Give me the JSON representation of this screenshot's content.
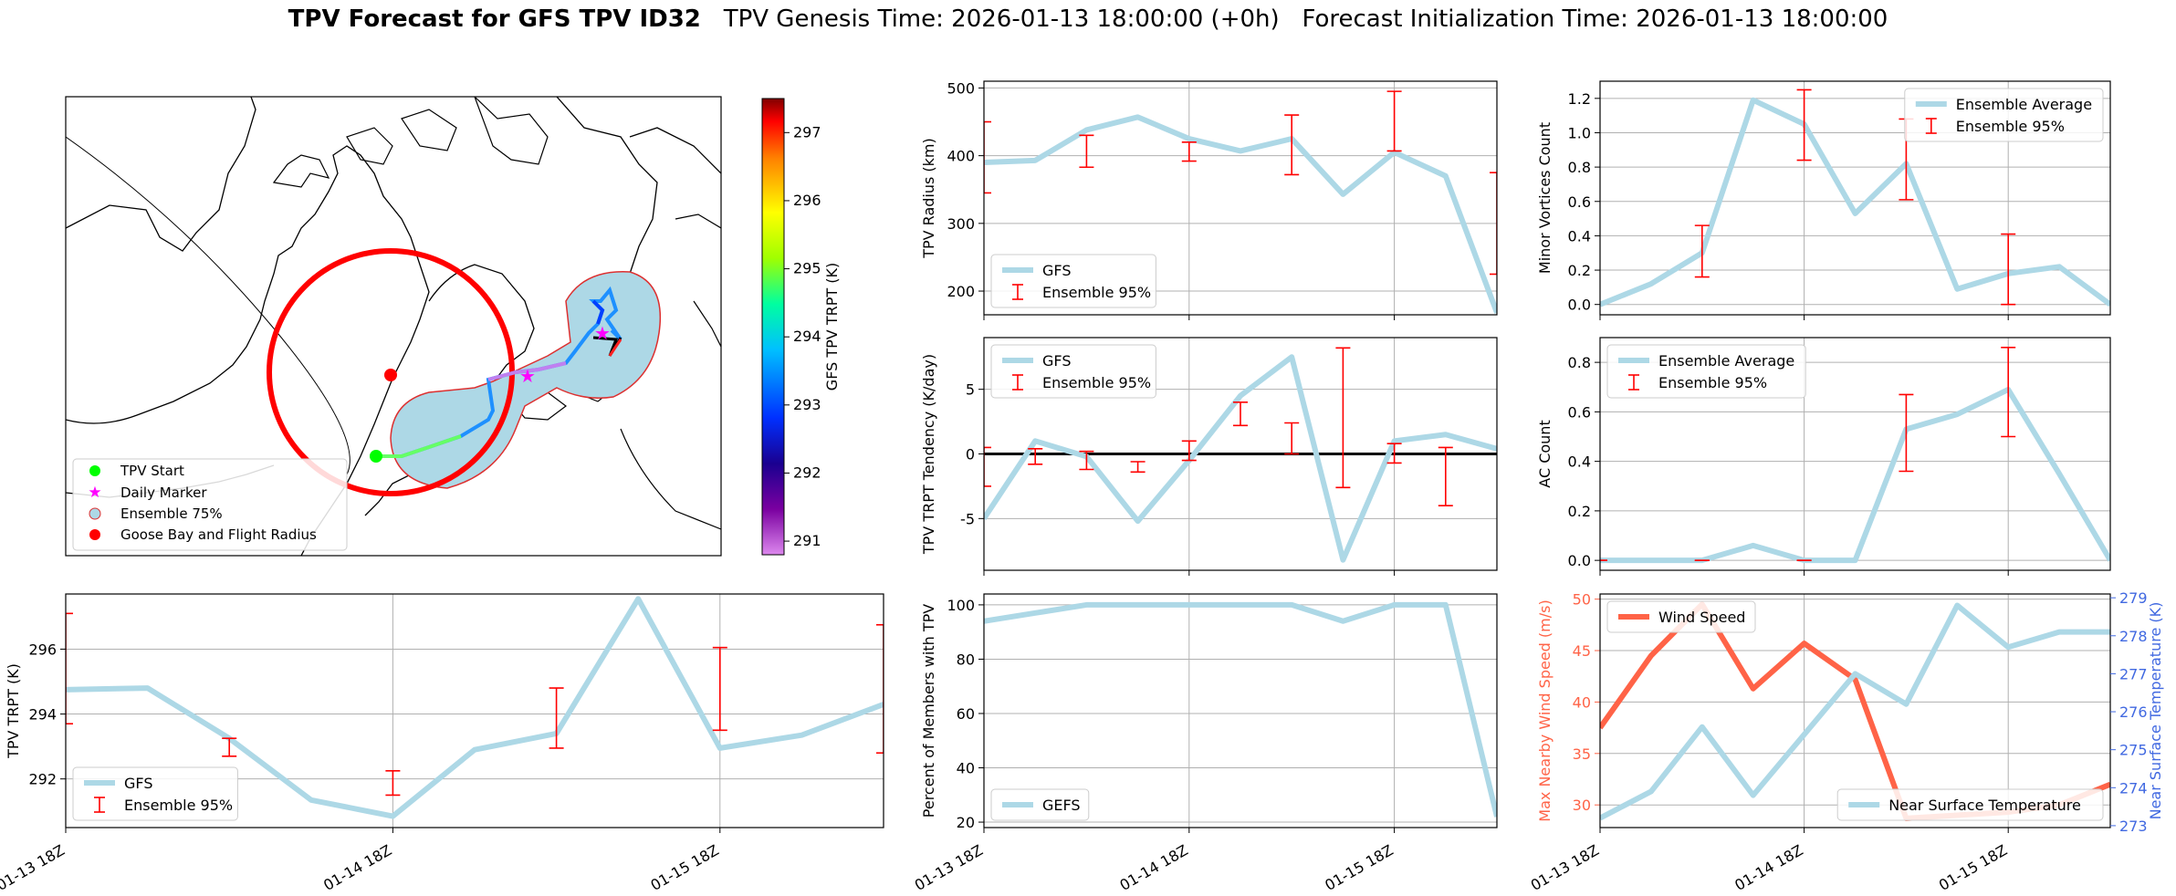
{
  "title": {
    "main": "TPV Forecast for GFS TPV ID32",
    "genesis": "TPV Genesis Time: 2026-01-13 18:00:00 (+0h)",
    "init": "Forecast Initialization Time: 2026-01-13 18:00:00"
  },
  "colors": {
    "gfs_line": "#add8e6",
    "errorbar": "#ff0000",
    "wind": "#ff6347",
    "temp_axis": "#4169e1",
    "wind_axis": "#ff6347",
    "grid": "#b0b0b0"
  },
  "map": {
    "colorbar_label": "GFS TPV TRPT (K)",
    "colorbar_ticks": [
      291,
      292,
      293,
      294,
      295,
      296,
      297
    ],
    "colorbar_range": [
      290.8,
      297.5
    ],
    "colormap": "gist_rainbow",
    "legend": [
      "TPV Start",
      "Daily Marker",
      "Ensemble 75%",
      "Goose Bay and Flight Radius"
    ],
    "legend_colors": {
      "start": "#00ff00",
      "daily": "#ff00ff",
      "ensemble": "#add8e6",
      "goose": "#ff0000"
    }
  },
  "chart_data": [
    {
      "id": "radius",
      "type": "line",
      "x": [
        "2026-01-13 18:00",
        "2026-01-14 00:00",
        "2026-01-14 06:00",
        "2026-01-14 12:00",
        "2026-01-14 18:00",
        "2026-01-15 00:00",
        "2026-01-15 06:00",
        "2026-01-15 12:00",
        "2026-01-15 18:00",
        "2026-01-16 00:00",
        "2026-01-16 06:00"
      ],
      "series": [
        {
          "name": "GFS",
          "values": [
            390,
            393,
            438,
            457,
            425,
            407,
            425,
            343,
            405,
            370,
            168
          ]
        }
      ],
      "errorbars": {
        "name": "Ensemble 95%",
        "points": [
          {
            "x": "2026-01-13 18:00",
            "low": 345,
            "high": 450
          },
          {
            "x": "2026-01-14 06:00",
            "low": 383,
            "high": 430
          },
          {
            "x": "2026-01-14 18:00",
            "low": 392,
            "high": 420
          },
          {
            "x": "2026-01-15 06:00",
            "low": 372,
            "high": 460
          },
          {
            "x": "2026-01-15 18:00",
            "low": 407,
            "high": 495
          },
          {
            "x": "2026-01-16 06:00",
            "low": 225,
            "high": 375
          }
        ]
      },
      "ylabel": "TPV Radius (km)",
      "xlabel": "",
      "yticks": [
        200,
        300,
        400,
        500
      ],
      "ylim": [
        165,
        510
      ],
      "legend": "lower-left"
    },
    {
      "id": "minor",
      "type": "line",
      "x": [
        "2026-01-13 18:00",
        "2026-01-14 00:00",
        "2026-01-14 06:00",
        "2026-01-14 12:00",
        "2026-01-14 18:00",
        "2026-01-15 00:00",
        "2026-01-15 06:00",
        "2026-01-15 12:00",
        "2026-01-15 18:00",
        "2026-01-16 00:00",
        "2026-01-16 06:00"
      ],
      "series": [
        {
          "name": "Ensemble Average",
          "values": [
            0.0,
            0.12,
            0.3,
            1.19,
            1.05,
            0.53,
            0.82,
            0.09,
            0.18,
            0.22,
            0.0
          ]
        }
      ],
      "errorbars": {
        "name": "Ensemble 95%",
        "points": [
          {
            "x": "2026-01-14 06:00",
            "low": 0.16,
            "high": 0.46
          },
          {
            "x": "2026-01-14 18:00",
            "low": 0.84,
            "high": 1.25
          },
          {
            "x": "2026-01-15 06:00",
            "low": 0.61,
            "high": 1.08
          },
          {
            "x": "2026-01-15 18:00",
            "low": 0.0,
            "high": 0.41
          }
        ]
      },
      "ylabel": "Minor Vortices Count",
      "xlabel": "",
      "yticks": [
        0.0,
        0.2,
        0.4,
        0.6,
        0.8,
        1.0,
        1.2
      ],
      "ylim": [
        -0.06,
        1.3
      ],
      "legend": "upper-right"
    },
    {
      "id": "tendency",
      "type": "line",
      "x": [
        "2026-01-13 18:00",
        "2026-01-14 00:00",
        "2026-01-14 06:00",
        "2026-01-14 12:00",
        "2026-01-14 18:00",
        "2026-01-15 00:00",
        "2026-01-15 06:00",
        "2026-01-15 12:00",
        "2026-01-15 18:00",
        "2026-01-16 00:00",
        "2026-01-16 06:00"
      ],
      "series": [
        {
          "name": "GFS",
          "values": [
            -5.0,
            1.0,
            -0.2,
            -5.2,
            -0.5,
            4.5,
            7.5,
            -8.2,
            1.0,
            1.5,
            0.4
          ]
        }
      ],
      "errorbars": {
        "name": "Ensemble 95%",
        "points": [
          {
            "x": "2026-01-13 18:00",
            "low": -2.5,
            "high": 0.5
          },
          {
            "x": "2026-01-14 00:00",
            "low": -0.8,
            "high": 0.4
          },
          {
            "x": "2026-01-14 06:00",
            "low": -1.2,
            "high": 0.2
          },
          {
            "x": "2026-01-14 12:00",
            "low": -1.4,
            "high": -0.6
          },
          {
            "x": "2026-01-14 18:00",
            "low": -0.5,
            "high": 1.0
          },
          {
            "x": "2026-01-15 00:00",
            "low": 2.2,
            "high": 4.0
          },
          {
            "x": "2026-01-15 06:00",
            "low": 0.0,
            "high": 2.4
          },
          {
            "x": "2026-01-15 12:00",
            "low": -2.6,
            "high": 8.2
          },
          {
            "x": "2026-01-15 18:00",
            "low": -0.7,
            "high": 0.8
          },
          {
            "x": "2026-01-16 00:00",
            "low": -4.0,
            "high": 0.5
          }
        ]
      },
      "zero_line": 0,
      "ylabel": "TPV TRPT Tendency (K/day)",
      "xlabel": "",
      "yticks": [
        -5,
        0,
        5
      ],
      "ylim": [
        -9,
        9
      ],
      "legend": "upper-left"
    },
    {
      "id": "ac",
      "type": "line",
      "x": [
        "2026-01-13 18:00",
        "2026-01-14 00:00",
        "2026-01-14 06:00",
        "2026-01-14 12:00",
        "2026-01-14 18:00",
        "2026-01-15 00:00",
        "2026-01-15 06:00",
        "2026-01-15 12:00",
        "2026-01-15 18:00",
        "2026-01-16 00:00",
        "2026-01-16 06:00"
      ],
      "series": [
        {
          "name": "Ensemble Average",
          "values": [
            0.0,
            0.0,
            0.0,
            0.06,
            0.0,
            0.0,
            0.53,
            0.59,
            0.69,
            0.35,
            0.0
          ]
        }
      ],
      "errorbars": {
        "name": "Ensemble 95%",
        "points": [
          {
            "x": "2026-01-13 18:00",
            "low": 0.0,
            "high": 0.0
          },
          {
            "x": "2026-01-14 06:00",
            "low": 0.0,
            "high": 0.0
          },
          {
            "x": "2026-01-14 18:00",
            "low": 0.0,
            "high": 0.0
          },
          {
            "x": "2026-01-15 06:00",
            "low": 0.36,
            "high": 0.67
          },
          {
            "x": "2026-01-15 18:00",
            "low": 0.5,
            "high": 0.86
          }
        ]
      },
      "ylabel": "AC Count",
      "xlabel": "",
      "yticks": [
        0.0,
        0.2,
        0.4,
        0.6,
        0.8
      ],
      "ylim": [
        -0.04,
        0.9
      ],
      "legend": "upper-left"
    },
    {
      "id": "trpt",
      "type": "line",
      "x": [
        "2026-01-13 18:00",
        "2026-01-14 00:00",
        "2026-01-14 06:00",
        "2026-01-14 12:00",
        "2026-01-14 18:00",
        "2026-01-15 00:00",
        "2026-01-15 06:00",
        "2026-01-15 12:00",
        "2026-01-15 18:00",
        "2026-01-16 00:00",
        "2026-01-16 06:00"
      ],
      "series": [
        {
          "name": "GFS",
          "values": [
            294.75,
            294.8,
            293.25,
            291.35,
            290.85,
            292.9,
            293.4,
            297.55,
            292.95,
            293.35,
            294.3
          ]
        }
      ],
      "errorbars": {
        "name": "Ensemble 95%",
        "points": [
          {
            "x": "2026-01-13 18:00",
            "low": 293.7,
            "high": 297.1
          },
          {
            "x": "2026-01-14 06:00",
            "low": 292.7,
            "high": 293.25
          },
          {
            "x": "2026-01-14 18:00",
            "low": 291.5,
            "high": 292.25
          },
          {
            "x": "2026-01-15 06:00",
            "low": 292.95,
            "high": 294.8
          },
          {
            "x": "2026-01-15 18:00",
            "low": 293.5,
            "high": 296.05
          },
          {
            "x": "2026-01-16 06:00",
            "low": 292.8,
            "high": 296.75
          }
        ]
      },
      "ylabel": "TPV TRPT (K)",
      "xlabel": "",
      "yticks": [
        292,
        294,
        296
      ],
      "ylim": [
        290.5,
        297.7
      ],
      "xticks": [
        "01-13 18Z",
        "01-14 18Z",
        "01-15 18Z"
      ],
      "legend": "lower-left"
    },
    {
      "id": "percent",
      "type": "line",
      "x": [
        "2026-01-13 18:00",
        "2026-01-14 00:00",
        "2026-01-14 06:00",
        "2026-01-14 12:00",
        "2026-01-14 18:00",
        "2026-01-15 00:00",
        "2026-01-15 06:00",
        "2026-01-15 12:00",
        "2026-01-15 18:00",
        "2026-01-16 00:00",
        "2026-01-16 06:00"
      ],
      "series": [
        {
          "name": "GEFS",
          "values": [
            94,
            97,
            100,
            100,
            100,
            100,
            100,
            94,
            100,
            100,
            22
          ]
        }
      ],
      "ylabel": "Percent of Members with TPV",
      "xlabel": "",
      "yticks": [
        20,
        40,
        60,
        80,
        100
      ],
      "ylim": [
        18,
        104
      ],
      "xticks": [
        "01-13 18Z",
        "01-14 18Z",
        "01-15 18Z"
      ],
      "legend": "lower-left"
    },
    {
      "id": "wind_temp",
      "type": "line",
      "x": [
        "2026-01-13 18:00",
        "2026-01-14 00:00",
        "2026-01-14 06:00",
        "2026-01-14 12:00",
        "2026-01-14 18:00",
        "2026-01-15 00:00",
        "2026-01-15 06:00",
        "2026-01-15 12:00",
        "2026-01-15 18:00",
        "2026-01-16 00:00",
        "2026-01-16 06:00"
      ],
      "series": [
        {
          "name": "Wind Speed",
          "axis": "left",
          "values": [
            37.5,
            44.5,
            49.5,
            41.3,
            45.7,
            42.2,
            28.7,
            29.0,
            29.3,
            30.0,
            32.0
          ]
        },
        {
          "name": "Near Surface Temperature",
          "axis": "right",
          "values": [
            273.2,
            273.9,
            275.6,
            273.8,
            275.4,
            277.0,
            276.2,
            278.8,
            277.7,
            278.1,
            278.1
          ]
        }
      ],
      "ylabel": "Max Nearby Wind Speed (m/s)",
      "ylabel_right": "Near Surface Temperature (K)",
      "yticks": [
        30,
        35,
        40,
        45,
        50
      ],
      "ylim": [
        27.8,
        50.5
      ],
      "yticks_right": [
        273,
        274,
        275,
        276,
        277,
        278,
        279
      ],
      "ylim_right": [
        272.95,
        279.1
      ],
      "xticks": [
        "01-13 18Z",
        "01-14 18Z",
        "01-15 18Z"
      ],
      "legend": "upper-left / lower-right"
    }
  ]
}
